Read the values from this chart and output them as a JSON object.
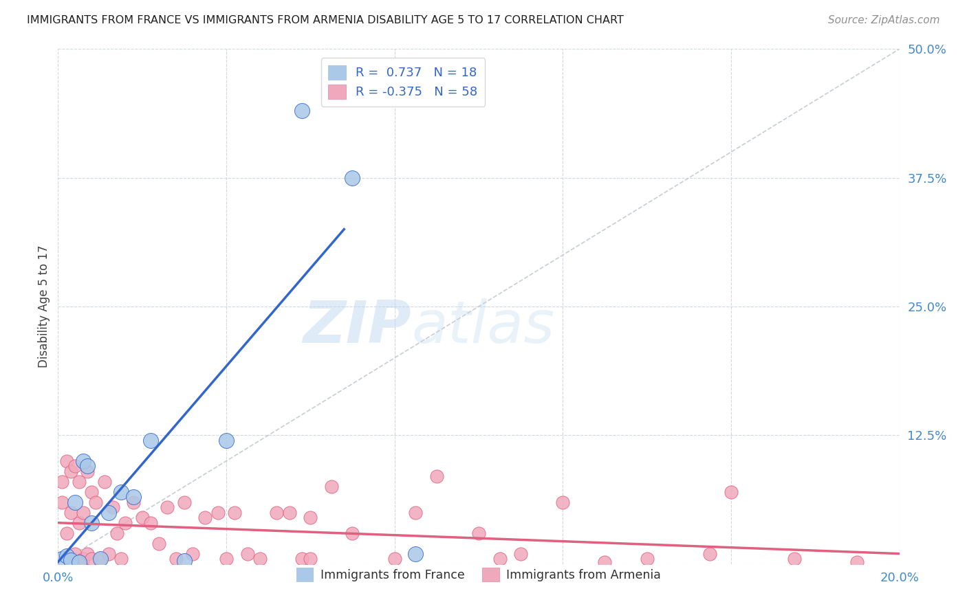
{
  "title": "IMMIGRANTS FROM FRANCE VS IMMIGRANTS FROM ARMENIA DISABILITY AGE 5 TO 17 CORRELATION CHART",
  "source": "Source: ZipAtlas.com",
  "xlabel": "",
  "ylabel": "Disability Age 5 to 17",
  "xlim": [
    0.0,
    0.2
  ],
  "ylim": [
    0.0,
    0.5
  ],
  "xticks": [
    0.0,
    0.04,
    0.08,
    0.12,
    0.16,
    0.2
  ],
  "xtick_labels": [
    "0.0%",
    "",
    "",
    "",
    "",
    "20.0%"
  ],
  "ytick_labels": [
    "",
    "12.5%",
    "25.0%",
    "37.5%",
    "50.0%"
  ],
  "yticks": [
    0.0,
    0.125,
    0.25,
    0.375,
    0.5
  ],
  "france_color": "#aac8e8",
  "france_line_color": "#3366cc",
  "armenia_color": "#f0a8bc",
  "armenia_line_color": "#e06080",
  "diagonal_color": "#c0c8d0",
  "R_france": 0.737,
  "N_france": 18,
  "R_armenia": -0.375,
  "N_armenia": 58,
  "watermark_zip": "ZIP",
  "watermark_atlas": "atlas",
  "france_points_x": [
    0.001,
    0.002,
    0.003,
    0.004,
    0.005,
    0.006,
    0.007,
    0.008,
    0.01,
    0.012,
    0.015,
    0.018,
    0.022,
    0.03,
    0.04,
    0.058,
    0.07,
    0.085
  ],
  "france_points_y": [
    0.005,
    0.008,
    0.004,
    0.06,
    0.002,
    0.1,
    0.095,
    0.04,
    0.005,
    0.05,
    0.07,
    0.065,
    0.12,
    0.003,
    0.12,
    0.44,
    0.375,
    0.01
  ],
  "armenia_points_x": [
    0.001,
    0.001,
    0.002,
    0.002,
    0.003,
    0.003,
    0.004,
    0.004,
    0.005,
    0.005,
    0.006,
    0.006,
    0.007,
    0.007,
    0.008,
    0.008,
    0.009,
    0.01,
    0.011,
    0.012,
    0.013,
    0.014,
    0.015,
    0.016,
    0.018,
    0.02,
    0.022,
    0.024,
    0.026,
    0.028,
    0.03,
    0.032,
    0.035,
    0.038,
    0.04,
    0.042,
    0.045,
    0.048,
    0.052,
    0.055,
    0.058,
    0.06,
    0.06,
    0.065,
    0.07,
    0.08,
    0.085,
    0.09,
    0.1,
    0.105,
    0.11,
    0.12,
    0.13,
    0.14,
    0.155,
    0.16,
    0.175,
    0.19
  ],
  "armenia_points_y": [
    0.06,
    0.08,
    0.03,
    0.1,
    0.05,
    0.09,
    0.095,
    0.01,
    0.04,
    0.08,
    0.005,
    0.05,
    0.09,
    0.01,
    0.005,
    0.07,
    0.06,
    0.005,
    0.08,
    0.01,
    0.055,
    0.03,
    0.005,
    0.04,
    0.06,
    0.045,
    0.04,
    0.02,
    0.055,
    0.005,
    0.06,
    0.01,
    0.045,
    0.05,
    0.005,
    0.05,
    0.01,
    0.005,
    0.05,
    0.05,
    0.005,
    0.005,
    0.045,
    0.075,
    0.03,
    0.005,
    0.05,
    0.085,
    0.03,
    0.005,
    0.01,
    0.06,
    0.002,
    0.005,
    0.01,
    0.07,
    0.005,
    0.002
  ],
  "france_line_x0": 0.0,
  "france_line_y0": 0.002,
  "france_line_x1": 0.068,
  "france_line_y1": 0.325,
  "armenia_line_x0": 0.0,
  "armenia_line_y0": 0.04,
  "armenia_line_x1": 0.2,
  "armenia_line_y1": 0.01
}
